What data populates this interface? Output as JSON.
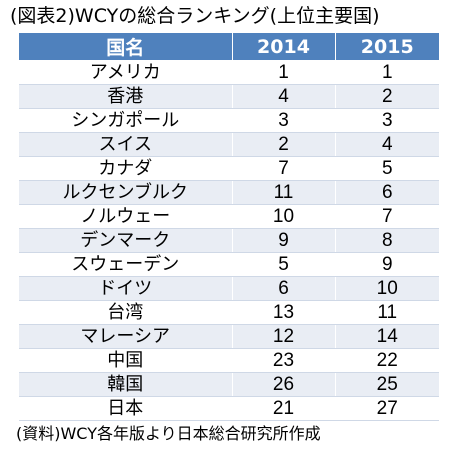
{
  "title": "(図表2)WCYの総合ランキング(上位主要国)",
  "table": {
    "headers": [
      "国名",
      "2014",
      "2015"
    ],
    "rows": [
      {
        "country": "アメリカ",
        "y2014": "1",
        "y2015": "1"
      },
      {
        "country": "香港",
        "y2014": "4",
        "y2015": "2"
      },
      {
        "country": "シンガポール",
        "y2014": "3",
        "y2015": "3"
      },
      {
        "country": "スイス",
        "y2014": "2",
        "y2015": "4"
      },
      {
        "country": "カナダ",
        "y2014": "7",
        "y2015": "5"
      },
      {
        "country": "ルクセンブルク",
        "y2014": "11",
        "y2015": "6"
      },
      {
        "country": "ノルウェー",
        "y2014": "10",
        "y2015": "7"
      },
      {
        "country": "デンマーク",
        "y2014": "9",
        "y2015": "8"
      },
      {
        "country": "スウェーデン",
        "y2014": "5",
        "y2015": "9"
      },
      {
        "country": "ドイツ",
        "y2014": "6",
        "y2015": "10"
      },
      {
        "country": "台湾",
        "y2014": "13",
        "y2015": "11"
      },
      {
        "country": "マレーシア",
        "y2014": "12",
        "y2015": "14"
      },
      {
        "country": "中国",
        "y2014": "23",
        "y2015": "22"
      },
      {
        "country": "韓国",
        "y2014": "26",
        "y2015": "25"
      },
      {
        "country": "日本",
        "y2014": "21",
        "y2015": "27"
      }
    ]
  },
  "source": "(資料)WCY各年版より日本総合研究所作成",
  "colors": {
    "header_bg": "#4f81bd",
    "header_text": "#ffffff",
    "stripe": "#e9edf4"
  }
}
